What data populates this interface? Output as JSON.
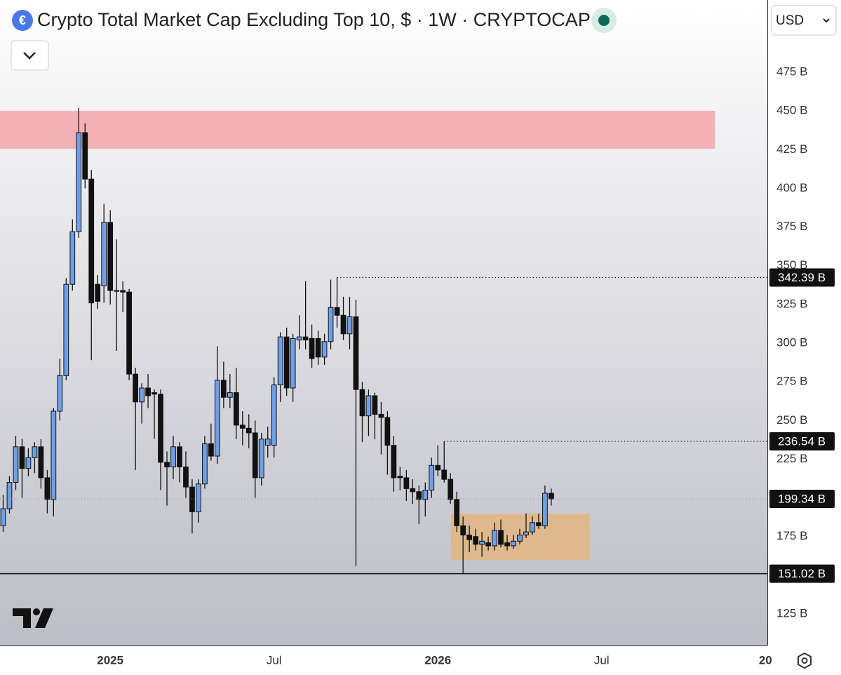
{
  "header": {
    "title": "Crypto Total Market Cap Excluding Top 10, $ · 1W · CRYPTOCAP",
    "currency": "USD"
  },
  "chart_data": {
    "type": "candlestick",
    "x": [
      -17,
      -16,
      -15,
      -14,
      -13,
      -12,
      -11,
      -10,
      -9,
      -8,
      -7,
      -6,
      -5,
      -4,
      -3,
      -2,
      -1,
      0,
      1,
      2,
      3,
      4,
      5,
      6,
      7,
      8,
      9,
      10,
      11,
      12,
      13,
      14,
      15,
      16,
      17,
      18,
      19,
      20,
      21,
      22,
      23,
      24,
      25,
      26,
      27,
      28,
      29,
      30,
      31,
      32,
      33,
      34,
      35,
      36,
      37,
      38,
      39,
      40,
      41,
      42,
      43,
      44,
      45,
      46,
      47,
      48,
      49,
      50,
      51,
      52,
      53,
      54,
      55,
      56,
      57,
      58,
      59,
      60,
      61,
      62,
      63,
      64,
      65,
      66,
      67,
      68,
      69,
      70
    ],
    "open": [
      182,
      193,
      210,
      233,
      219,
      226,
      233,
      213,
      199,
      256,
      279,
      338,
      372,
      436,
      406,
      338,
      337,
      378,
      334,
      334,
      333,
      280,
      262,
      271,
      268,
      267,
      223,
      220,
      233,
      220,
      207,
      191,
      209,
      235,
      227,
      276,
      265,
      268,
      247,
      245,
      242,
      213,
      234,
      234,
      273,
      304,
      271,
      302,
      304,
      303,
      303,
      291,
      301,
      323,
      318,
      306,
      317,
      270,
      253,
      266,
      254,
      252,
      234,
      214,
      213,
      206,
      204,
      199,
      205,
      221,
      218,
      212,
      199,
      182,
      176,
      175,
      170,
      171,
      169,
      179,
      171,
      169,
      172,
      176,
      178,
      184,
      182,
      203
    ],
    "high": [
      202,
      214,
      240,
      238,
      232,
      236,
      238,
      218,
      258,
      290,
      342,
      380,
      452,
      442,
      412,
      344,
      390,
      386,
      367,
      340,
      335,
      284,
      274,
      280,
      270,
      270,
      230,
      240,
      236,
      230,
      212,
      212,
      240,
      248,
      298,
      288,
      280,
      284,
      256,
      254,
      250,
      242,
      246,
      278,
      307,
      310,
      306,
      318,
      340,
      312,
      308,
      306,
      341,
      342.39,
      330,
      330,
      328,
      275,
      270,
      268,
      262,
      256,
      240,
      220,
      218,
      212,
      208,
      210,
      226,
      234,
      236.54,
      216,
      204,
      188,
      182,
      180,
      178,
      175,
      184,
      186,
      176,
      176,
      180,
      190,
      188,
      190,
      208,
      206
    ],
    "low": [
      178,
      190,
      205,
      200,
      214,
      216,
      206,
      190,
      188,
      250,
      276,
      334,
      368,
      400,
      289,
      322,
      326,
      325,
      295,
      320,
      276,
      218,
      248,
      258,
      238,
      205,
      195,
      212,
      210,
      200,
      177,
      184,
      206,
      224,
      222,
      258,
      258,
      238,
      234,
      232,
      200,
      208,
      226,
      226,
      262,
      266,
      262,
      296,
      296,
      284,
      286,
      286,
      296,
      310,
      302,
      296,
      156,
      236,
      240,
      238,
      228,
      215,
      204,
      205,
      198,
      196,
      183,
      188,
      200,
      214,
      210,
      196,
      178,
      151.02,
      165,
      166,
      162,
      166,
      166,
      168,
      166,
      167,
      170,
      174,
      176,
      180,
      180,
      195
    ],
    "close": [
      193,
      210,
      233,
      219,
      226,
      233,
      213,
      199,
      256,
      279,
      338,
      372,
      436,
      406,
      326,
      327,
      378,
      334,
      334,
      333,
      280,
      262,
      271,
      266,
      267,
      223,
      220,
      233,
      220,
      207,
      191,
      209,
      235,
      227,
      276,
      265,
      268,
      247,
      245,
      242,
      213,
      238,
      238,
      273,
      304,
      271,
      303,
      304,
      302,
      290,
      291,
      301,
      323,
      318,
      306,
      317,
      270,
      253,
      266,
      254,
      252,
      234,
      213,
      213,
      206,
      204,
      199,
      205,
      221,
      218,
      212,
      199,
      182,
      176,
      173,
      170,
      172,
      169,
      179,
      170,
      169,
      172,
      176,
      178,
      184,
      182,
      203,
      199.34
    ],
    "up_color": "#6f9fe8",
    "down_color": "#111111",
    "xlim": [
      -17.5,
      104.3
    ],
    "ylim": [
      104.6,
      521.7
    ],
    "xticks": [
      {
        "value": 0,
        "label": "2025"
      },
      {
        "value": 26,
        "label": "Jul"
      },
      {
        "value": 52,
        "label": "2026"
      },
      {
        "value": 78,
        "label": "Jul"
      },
      {
        "value": 104,
        "label": "20"
      }
    ],
    "yticks": [
      {
        "value": 125,
        "label": "125 B"
      },
      {
        "value": 175,
        "label": "175 B"
      },
      {
        "value": 200,
        "label": "200 B"
      },
      {
        "value": 225,
        "label": "225 B"
      },
      {
        "value": 250,
        "label": "250 B"
      },
      {
        "value": 275,
        "label": "275 B"
      },
      {
        "value": 300,
        "label": "300 B"
      },
      {
        "value": 325,
        "label": "325 B"
      },
      {
        "value": 350,
        "label": "350 B"
      },
      {
        "value": 375,
        "label": "375 B"
      },
      {
        "value": 400,
        "label": "400 B"
      },
      {
        "value": 425,
        "label": "425 B"
      },
      {
        "value": 450,
        "label": "450 B"
      },
      {
        "value": 475,
        "label": "475 B"
      }
    ],
    "price_lines": [
      {
        "value": 342.39,
        "label": "342.39 B",
        "x_from": 36,
        "style": "dotted"
      },
      {
        "value": 236.54,
        "label": "236.54 B",
        "x_from": 53,
        "style": "dotted"
      },
      {
        "value": 199.34,
        "label": "199.34 B",
        "x_from": -17.5,
        "style": "faint"
      },
      {
        "value": 151.02,
        "label": "151.02 B",
        "x_from": -17.5,
        "style": "solid"
      }
    ],
    "zones": [
      {
        "y": [
          425.6,
          450.1
        ],
        "x": [
          -17.5,
          96
        ],
        "color": "#f4b1b7"
      },
      {
        "y": [
          159.9,
          189.8
        ],
        "x": [
          54.1,
          76.1
        ],
        "color": "#dfb98e"
      }
    ]
  }
}
